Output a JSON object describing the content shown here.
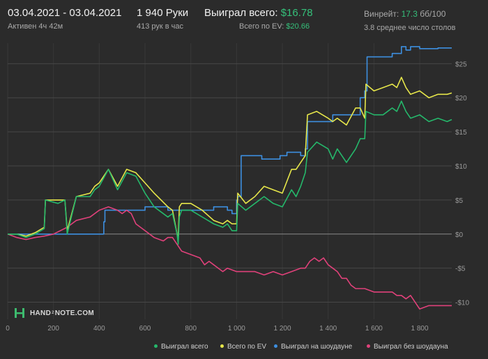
{
  "header": {
    "date_range": "03.04.2021 - 03.04.2021",
    "active_time": "Активен 4ч 42м",
    "hands": "1 940 Руки",
    "hands_per_hour": "413 рук в час",
    "won_label": "Выиграл всего:",
    "won_value": "$16.78",
    "ev_label": "Всего по EV:",
    "ev_value": "$20.66",
    "winrate_label": "Винрейт:",
    "winrate_value": "17.3",
    "winrate_unit": "бб/100",
    "avg_tables": "3.8 среднее число столов"
  },
  "watermark": {
    "brand_a": "HAND",
    "brand_sup": "2",
    "brand_b": "NOTE.COM"
  },
  "chart_data": {
    "type": "line",
    "xlabel": "",
    "ylabel": "",
    "xlim": [
      0,
      1940
    ],
    "ylim": [
      -12.5,
      28
    ],
    "x_ticks": [
      0,
      200,
      400,
      600,
      800,
      1000,
      1200,
      1400,
      1600,
      1800
    ],
    "x_tick_labels": [
      "0",
      "200",
      "400",
      "600",
      "800",
      "1 000",
      "1 200",
      "1 400",
      "1 600",
      "1 800"
    ],
    "y_ticks": [
      25,
      20,
      15,
      10,
      5,
      0,
      -5,
      -10
    ],
    "y_tick_labels": [
      "$25",
      "$20",
      "$15",
      "$10",
      "$5",
      "$0",
      "-$5",
      "-$10"
    ],
    "grid": true,
    "legend_position": "bottom-right",
    "series": [
      {
        "name": "Выиграл всего",
        "color": "#25b86b",
        "x": [
          0,
          40,
          80,
          120,
          160,
          165,
          220,
          250,
          260,
          300,
          360,
          380,
          400,
          440,
          480,
          520,
          560,
          600,
          640,
          700,
          720,
          740,
          745,
          750,
          760,
          800,
          850,
          900,
          940,
          960,
          980,
          1000,
          1005,
          1040,
          1080,
          1120,
          1160,
          1200,
          1240,
          1260,
          1280,
          1300,
          1310,
          1350,
          1400,
          1420,
          1440,
          1480,
          1520,
          1540,
          1560,
          1565,
          1600,
          1640,
          1680,
          1700,
          1720,
          1740,
          1760,
          1800,
          1840,
          1880,
          1920,
          1940
        ],
        "y": [
          0,
          0,
          -0.5,
          0,
          0.8,
          5,
          4.5,
          5,
          0,
          5.5,
          5.5,
          6.5,
          7,
          9.5,
          6.5,
          9,
          8.5,
          6,
          4,
          2.5,
          3,
          0,
          -1.5,
          2.5,
          3.5,
          3.5,
          2.5,
          1.5,
          1,
          1.5,
          0.5,
          0.5,
          4.5,
          3.5,
          4.5,
          5.5,
          4.5,
          4,
          6.5,
          5.5,
          7,
          9,
          12,
          13.5,
          12.5,
          11,
          12.5,
          10.5,
          12.5,
          14,
          14,
          18,
          17.5,
          17.5,
          18.5,
          18,
          19.5,
          18,
          17,
          17.5,
          16.5,
          17,
          16.5,
          16.8
        ]
      },
      {
        "name": "Всего по EV",
        "color": "#e6e64a",
        "x": [
          0,
          40,
          80,
          120,
          160,
          165,
          220,
          250,
          260,
          300,
          360,
          380,
          400,
          440,
          480,
          520,
          560,
          600,
          640,
          700,
          720,
          740,
          745,
          750,
          760,
          800,
          850,
          900,
          940,
          960,
          980,
          1000,
          1005,
          1040,
          1080,
          1120,
          1160,
          1200,
          1240,
          1260,
          1280,
          1300,
          1310,
          1350,
          1400,
          1420,
          1440,
          1480,
          1520,
          1540,
          1560,
          1565,
          1600,
          1640,
          1680,
          1700,
          1720,
          1740,
          1760,
          1800,
          1840,
          1880,
          1920,
          1940
        ],
        "y": [
          0,
          0,
          -0.3,
          0.2,
          1,
          5,
          5,
          5,
          0.5,
          5.5,
          6,
          7,
          7.5,
          9.5,
          7,
          9.5,
          9,
          7.5,
          6,
          4,
          3.5,
          0,
          -0.5,
          4,
          4.5,
          4.5,
          3.5,
          2,
          1.5,
          2,
          1.5,
          1.5,
          6,
          4.5,
          5.5,
          7,
          6.5,
          6,
          9.5,
          9.5,
          10.5,
          11.5,
          17.5,
          18,
          17,
          16.5,
          17,
          16,
          18.5,
          18.5,
          17,
          22,
          21,
          21.5,
          22,
          21.5,
          23,
          21.5,
          20.5,
          21,
          20,
          20.5,
          20.5,
          20.7
        ]
      },
      {
        "name": "Выиграл на шоудауне",
        "color": "#3d8fe0",
        "x": [
          0,
          80,
          120,
          160,
          250,
          255,
          360,
          380,
          420,
          425,
          580,
          600,
          700,
          760,
          800,
          900,
          950,
          960,
          980,
          1000,
          1005,
          1020,
          1080,
          1100,
          1110,
          1180,
          1190,
          1200,
          1220,
          1280,
          1300,
          1310,
          1400,
          1420,
          1440,
          1480,
          1530,
          1540,
          1560,
          1570,
          1590,
          1610,
          1640,
          1650,
          1680,
          1700,
          1720,
          1740,
          1760,
          1800,
          1840,
          1880,
          1940
        ],
        "y": [
          0,
          0,
          0,
          0,
          0,
          0,
          0,
          0,
          1.8,
          3.5,
          3.5,
          4,
          3.5,
          3.5,
          3.5,
          4,
          4,
          3.5,
          3,
          5,
          5.5,
          11.5,
          11.5,
          11.5,
          11,
          11,
          11.5,
          11.5,
          12,
          11.5,
          12.5,
          16.5,
          16.5,
          17.5,
          17.5,
          17.5,
          17.5,
          20,
          21,
          26,
          26,
          26,
          26,
          26,
          26.5,
          26.5,
          27.5,
          27,
          27.5,
          27.2,
          27.2,
          27.3,
          27.3
        ]
      },
      {
        "name": "Выиграл без шоудауна",
        "color": "#e0417a",
        "x": [
          0,
          40,
          80,
          120,
          160,
          200,
          260,
          300,
          360,
          400,
          440,
          480,
          500,
          520,
          540,
          560,
          600,
          640,
          680,
          700,
          720,
          740,
          760,
          800,
          840,
          860,
          880,
          900,
          940,
          960,
          1000,
          1040,
          1080,
          1120,
          1160,
          1200,
          1240,
          1280,
          1300,
          1320,
          1340,
          1360,
          1380,
          1400,
          1420,
          1440,
          1460,
          1480,
          1500,
          1520,
          1560,
          1600,
          1640,
          1660,
          1680,
          1700,
          1720,
          1740,
          1760,
          1780,
          1800,
          1840,
          1880,
          1920,
          1940
        ],
        "y": [
          0,
          -0.5,
          -0.8,
          -0.5,
          -0.3,
          0,
          1,
          2,
          2.5,
          3.5,
          4,
          3.5,
          3,
          3.5,
          3,
          1.5,
          0.5,
          -0.5,
          -1,
          -0.5,
          -0.5,
          -1.5,
          -2.5,
          -3,
          -3.5,
          -4.5,
          -4,
          -4.5,
          -5.5,
          -5,
          -5.5,
          -5.5,
          -5.5,
          -6,
          -5.5,
          -6,
          -5.5,
          -5,
          -5,
          -4,
          -3.5,
          -4,
          -3.5,
          -4.5,
          -5,
          -5.5,
          -6.5,
          -6.5,
          -7.5,
          -8,
          -8,
          -8.5,
          -8.5,
          -8.5,
          -8.5,
          -9,
          -9,
          -9.5,
          -9,
          -10,
          -11,
          -10.5,
          -10.5,
          -10.5,
          -10.5
        ]
      }
    ]
  }
}
